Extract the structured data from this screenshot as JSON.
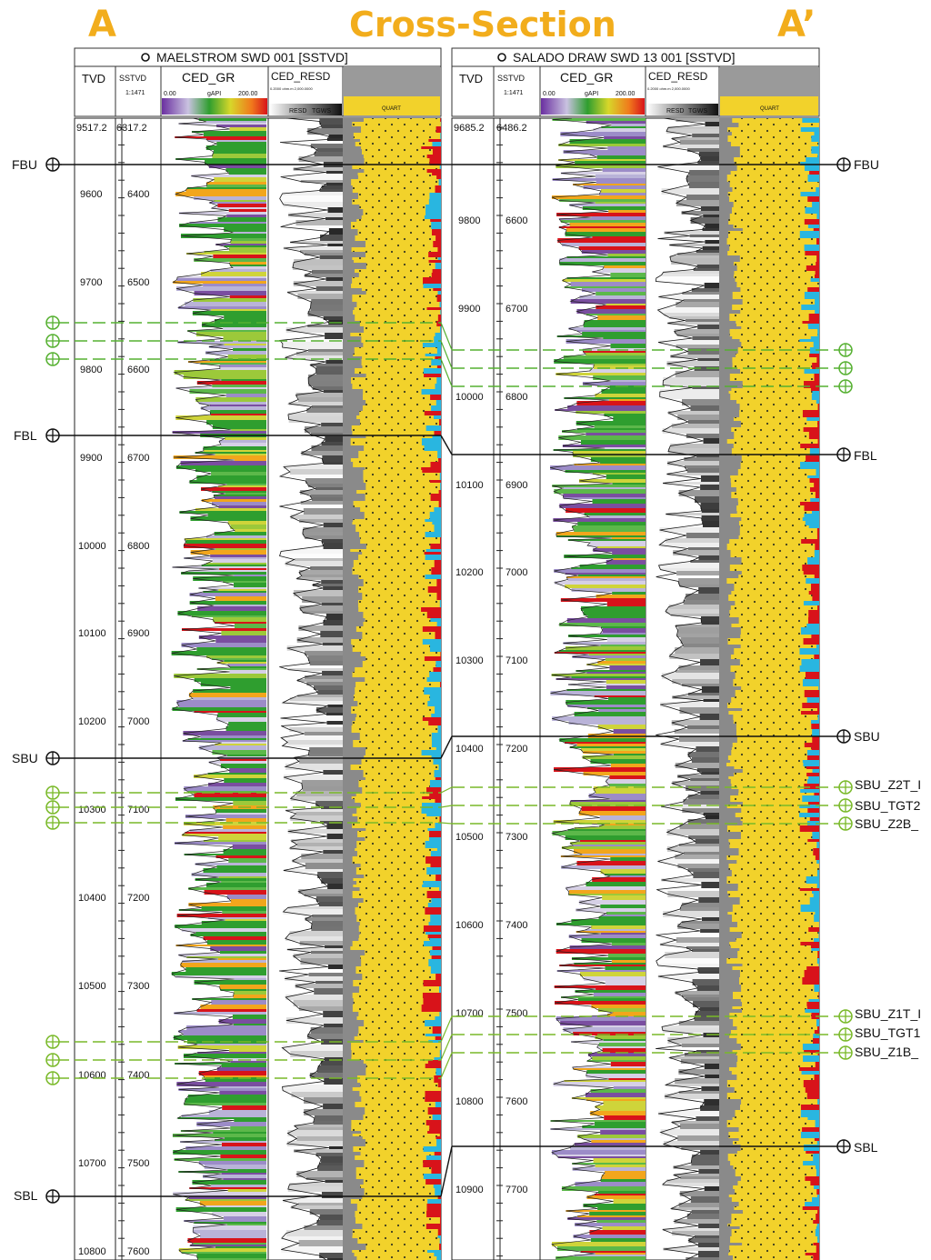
{
  "header": {
    "left_label": "A",
    "title": "Cross-Section",
    "right_label": "A’"
  },
  "colors": {
    "accent": "#f2ad1c",
    "sand_yellow": "#f2d22b",
    "water_cyan": "#29b6e0",
    "oil_red": "#d8131a",
    "gr_green": "#2f9e2f",
    "gr_purple": "#7a4ea0",
    "marker_green": "#55b030"
  },
  "wells": [
    {
      "name": "MAELSTROM SWD 001 [SSTVD]",
      "col_tvd": "TVD",
      "col_sstvd": "SSTVD",
      "scale_ratio": "1:1471",
      "gr_track": "CED_GR",
      "gr_min": "0.00",
      "gr_unit": "gAPI",
      "gr_max": "200.00",
      "res_track": "CED_RESD",
      "res_scale": "0.2000 ohm.m 2,000.0000",
      "res_footer": "RESD",
      "res_footer2": "TGWS",
      "litho_header": "QUART",
      "top_tvd": "9517.2",
      "top_sstvd": "6317.2",
      "tvd_ticks": [
        "9600",
        "9700",
        "9800",
        "9900",
        "10000",
        "10100",
        "10200",
        "10300",
        "10400",
        "10500",
        "10600",
        "10700",
        "10800"
      ],
      "sstvd_ticks": [
        "6400",
        "6500",
        "6600",
        "6700",
        "6800",
        "6900",
        "7000",
        "7100",
        "7200",
        "7300",
        "7400",
        "7500",
        "7600"
      ],
      "tops": [
        {
          "name": "FBU"
        },
        {
          "name": "FBL"
        },
        {
          "name": "SBU"
        },
        {
          "name": "SBL"
        }
      ]
    },
    {
      "name": "SALADO DRAW SWD 13 001 [SSTVD]",
      "col_tvd": "TVD",
      "col_sstvd": "SSTVD",
      "scale_ratio": "1:1471",
      "gr_track": "CED_GR",
      "gr_min": "0.00",
      "gr_unit": "gAPI",
      "gr_max": "200.00",
      "res_track": "CED_RESD",
      "res_scale": "0.2000 ohm.m 2,000.0000",
      "res_footer": "RESD",
      "res_footer2": "TGWS",
      "litho_header": "QUART",
      "top_tvd": "9685.2",
      "top_sstvd": "6486.2",
      "tvd_ticks": [
        "9800",
        "9900",
        "10000",
        "10100",
        "10200",
        "10300",
        "10400",
        "10500",
        "10600",
        "10700",
        "10800",
        "10900"
      ],
      "sstvd_ticks": [
        "6600",
        "6700",
        "6800",
        "6900",
        "7000",
        "7100",
        "7200",
        "7300",
        "7400",
        "7500",
        "7600",
        "7700"
      ],
      "tops": [
        {
          "name": "FBU"
        },
        {
          "name": "FBL"
        },
        {
          "name": "SBU"
        },
        {
          "name": "SBL"
        }
      ],
      "sub_tops": [
        "SBU_Z2T_I",
        "SBU_TGT2",
        "SBU_Z2B_",
        "SBU_Z1T_I",
        "SBU_TGT1",
        "SBU_Z1B_"
      ]
    }
  ]
}
